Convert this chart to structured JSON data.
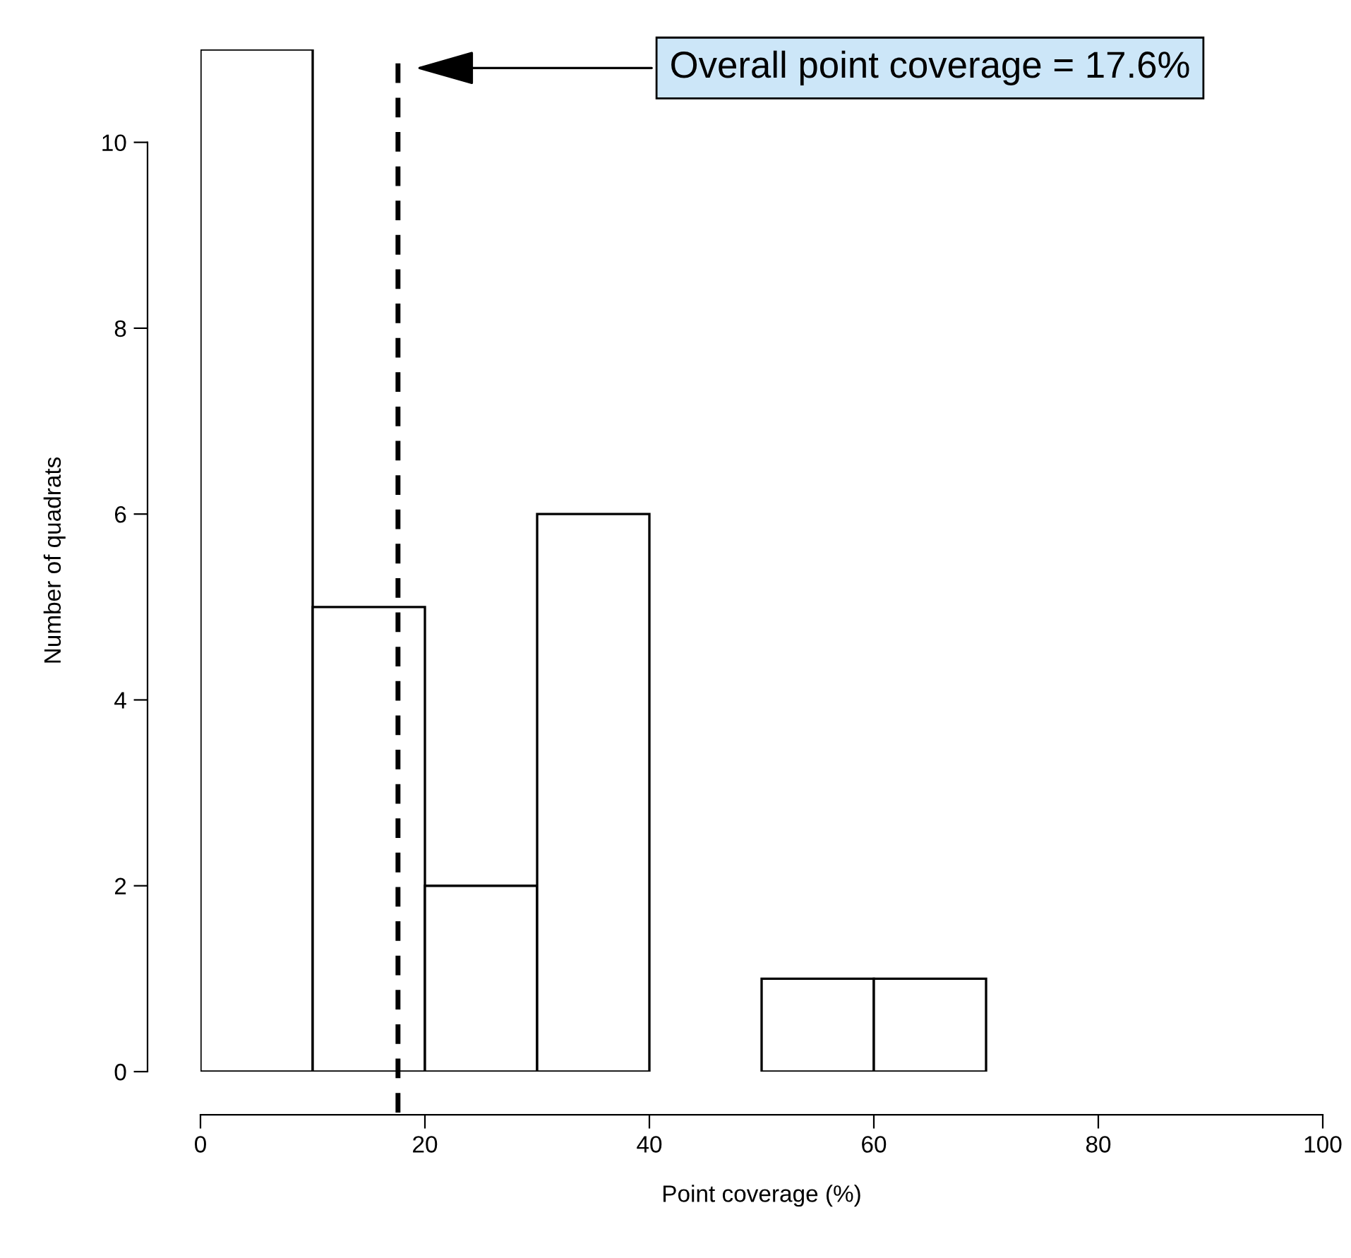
{
  "chart_data": {
    "type": "histogram",
    "xlabel": "Point coverage (%)",
    "ylabel": "Number of quadrats",
    "bins": [
      0,
      10,
      20,
      30,
      40,
      50,
      60,
      70
    ],
    "values": [
      11,
      5,
      2,
      6,
      0,
      1,
      1
    ],
    "color": "#ffffff",
    "xlim": [
      0,
      100
    ],
    "xticks": [
      0,
      20,
      40,
      60,
      80,
      100
    ],
    "ylim": [
      0,
      11
    ],
    "yticks": [
      0,
      2,
      4,
      6,
      8,
      10
    ],
    "grid": false,
    "legend": false,
    "ref_lines": [
      {
        "axis": "x",
        "value": 17.6,
        "label": "Overall point coverage = 17.6%",
        "color": "#000000",
        "line_style": "dashed"
      }
    ]
  }
}
